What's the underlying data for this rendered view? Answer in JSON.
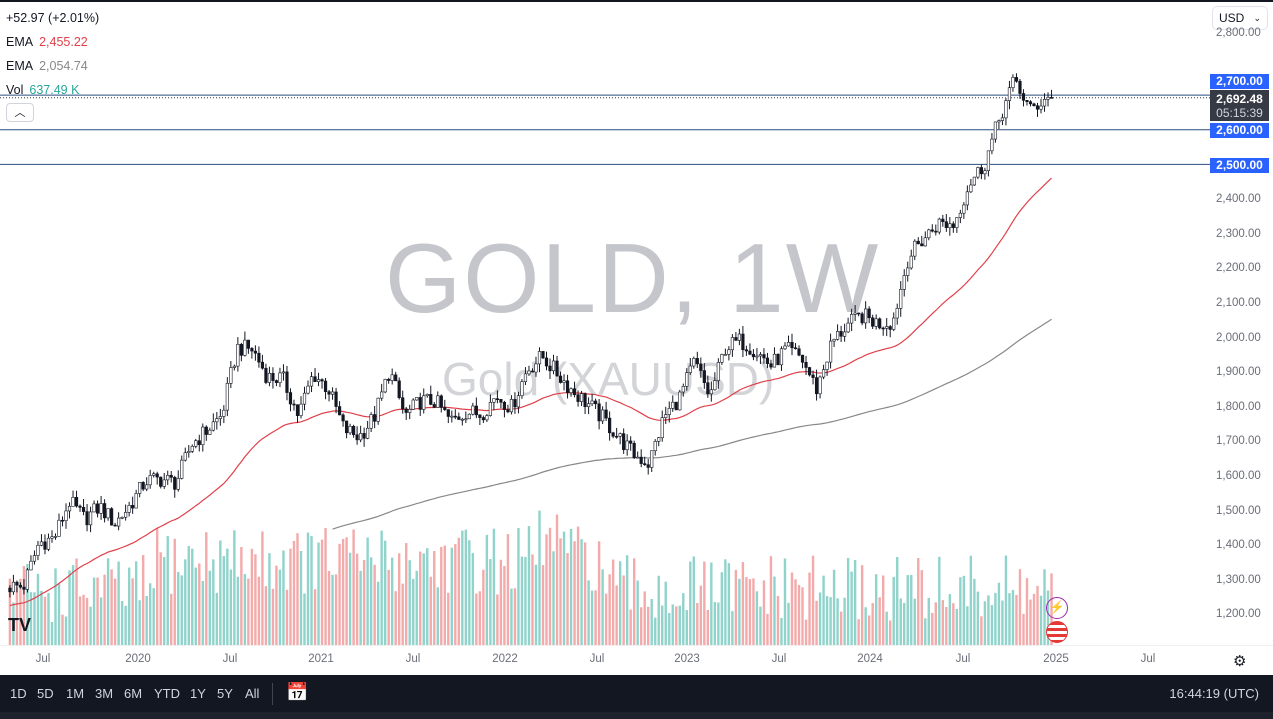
{
  "legend": {
    "change": "+52.97 (+2.01%)",
    "ema1_label": "EMA",
    "ema1_value": "2,455.22",
    "ema2_label": "EMA",
    "ema2_value": "2,054.74",
    "vol_label": "Vol",
    "vol_value": "637.49 K"
  },
  "colors": {
    "ema_fast": "#e0404a",
    "ema_slow": "#888888",
    "vol_value": "#26a69a",
    "level_tag": "#2962ff",
    "vol_up": "#8fd3cb",
    "vol_down": "#f2aaaa"
  },
  "currency": "USD",
  "watermark": {
    "symbol": "GOLD, 1W",
    "name": "Gold (XAUUSD)"
  },
  "price_axis": [
    "2,800.00",
    "2,400.00",
    "2,300.00",
    "2,200.00",
    "2,100.00",
    "2,000.00",
    "1,900.00",
    "1,800.00",
    "1,700.00",
    "1,600.00",
    "1,500.00",
    "1,400.00",
    "1,300.00",
    "1,200.00"
  ],
  "levels": [
    "2,700.00",
    "2,600.00",
    "2,500.00"
  ],
  "last_price": {
    "value": "2,692.48",
    "countdown": "05:15:39"
  },
  "time_axis": [
    "Jul",
    "2020",
    "Jul",
    "2021",
    "Jul",
    "2022",
    "Jul",
    "2023",
    "Jul",
    "2024",
    "Jul",
    "2025",
    "Jul"
  ],
  "toolbar": {
    "ranges": [
      "1D",
      "5D",
      "1M",
      "3M",
      "6M",
      "YTD",
      "1Y",
      "5Y",
      "All"
    ],
    "clock": "16:44:19 (UTC)"
  },
  "icons": [
    "collapse-chevron-icon",
    "chevron-down-icon",
    "goto-date-icon",
    "settings-gear-icon",
    "tradingview-logo-icon",
    "lightning-icon",
    "us-flag-icon"
  ],
  "chart_data": {
    "type": "candlestick",
    "interval": "1W",
    "symbol": "GOLD",
    "y_scale": "linear",
    "ylim": [
      1200,
      2800
    ],
    "x_range": [
      "2019-05",
      "2025-08"
    ],
    "monthly_close_approx": {
      "months": [
        "2019-05",
        "2019-06",
        "2019-07",
        "2019-08",
        "2019-09",
        "2019-10",
        "2019-11",
        "2019-12",
        "2020-01",
        "2020-02",
        "2020-03",
        "2020-04",
        "2020-05",
        "2020-06",
        "2020-07",
        "2020-08",
        "2020-09",
        "2020-10",
        "2020-11",
        "2020-12",
        "2021-01",
        "2021-02",
        "2021-03",
        "2021-04",
        "2021-05",
        "2021-06",
        "2021-07",
        "2021-08",
        "2021-09",
        "2021-10",
        "2021-11",
        "2021-12",
        "2022-01",
        "2022-02",
        "2022-03",
        "2022-04",
        "2022-05",
        "2022-06",
        "2022-07",
        "2022-08",
        "2022-09",
        "2022-10",
        "2022-11",
        "2022-12",
        "2023-01",
        "2023-02",
        "2023-03",
        "2023-04",
        "2023-05",
        "2023-06",
        "2023-07",
        "2023-08",
        "2023-09",
        "2023-10",
        "2023-11",
        "2023-12",
        "2024-01",
        "2024-02",
        "2024-03",
        "2024-04",
        "2024-05",
        "2024-06",
        "2024-07",
        "2024-08",
        "2024-09",
        "2024-10",
        "2024-11",
        "2024-12"
      ],
      "values": [
        1280,
        1405,
        1420,
        1525,
        1475,
        1510,
        1462,
        1515,
        1585,
        1590,
        1580,
        1690,
        1730,
        1775,
        1970,
        1965,
        1885,
        1880,
        1775,
        1895,
        1850,
        1735,
        1712,
        1770,
        1905,
        1772,
        1815,
        1815,
        1757,
        1785,
        1778,
        1830,
        1797,
        1905,
        1945,
        1895,
        1845,
        1808,
        1765,
        1712,
        1662,
        1635,
        1770,
        1825,
        1930,
        1828,
        1970,
        1990,
        1962,
        1918,
        1965,
        1940,
        1850,
        1985,
        2035,
        2063,
        2040,
        2045,
        2230,
        2285,
        2330,
        2326,
        2445,
        2500,
        2635,
        2745,
        2655,
        2692
      ]
    },
    "ema_series": [
      {
        "name": "EMA",
        "last": 2455.22
      },
      {
        "name": "EMA",
        "last": 2054.74
      }
    ],
    "volume_last": "637.49K",
    "horizontal_levels": [
      2700,
      2600,
      2500
    ],
    "last_price": 2692.48
  }
}
